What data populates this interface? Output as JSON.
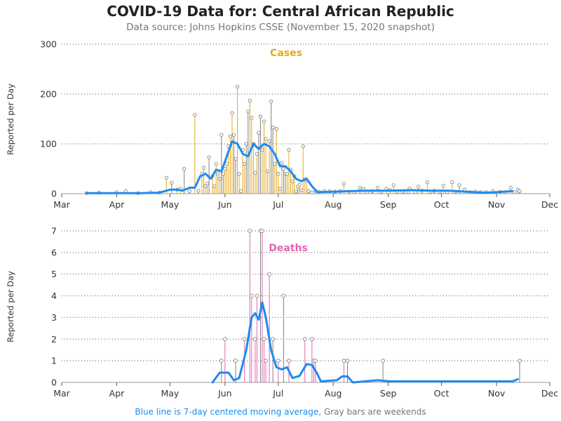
{
  "title": "COVID-19 Data for: Central African Republic",
  "subtitle": "Data source: Johns Hopkins CSSE (November 15, 2020 snapshot)",
  "footnote": {
    "blue": "Blue line is 7-day centered moving average,",
    "gray": "Gray bars are weekends"
  },
  "colors": {
    "cases": "#e6a817",
    "deaths": "#e066b3",
    "weekend": "#808080",
    "avg": "#1f8bef",
    "grid": "#555555"
  },
  "chart_data": [
    {
      "type": "bar",
      "title": "Cases",
      "ylabel": "Reported per Day",
      "ylim": [
        0,
        300
      ],
      "yticks": [
        0,
        100,
        200,
        300
      ],
      "xticks": [
        "Mar",
        "Apr",
        "May",
        "Jun",
        "Jul",
        "Aug",
        "Sep",
        "Oct",
        "Nov",
        "Dec"
      ],
      "xlim": [
        "2020-03-01",
        "2020-12-01"
      ],
      "grid": true,
      "spikes": [
        {
          "x": "2020-03-15",
          "y": 1
        },
        {
          "x": "2020-03-22",
          "y": 2
        },
        {
          "x": "2020-04-01",
          "y": 3
        },
        {
          "x": "2020-04-06",
          "y": 5
        },
        {
          "x": "2020-04-13",
          "y": 1
        },
        {
          "x": "2020-04-20",
          "y": 3
        },
        {
          "x": "2020-04-25",
          "y": 2
        },
        {
          "x": "2020-04-29",
          "y": 32
        },
        {
          "x": "2020-05-02",
          "y": 22
        },
        {
          "x": "2020-05-05",
          "y": 8
        },
        {
          "x": "2020-05-07",
          "y": 10
        },
        {
          "x": "2020-05-09",
          "y": 50
        },
        {
          "x": "2020-05-12",
          "y": 5
        },
        {
          "x": "2020-05-15",
          "y": 158
        },
        {
          "x": "2020-05-17",
          "y": 6
        },
        {
          "x": "2020-05-19",
          "y": 40
        },
        {
          "x": "2020-05-20",
          "y": 52
        },
        {
          "x": "2020-05-21",
          "y": 15
        },
        {
          "x": "2020-05-22",
          "y": 20
        },
        {
          "x": "2020-05-23",
          "y": 73
        },
        {
          "x": "2020-05-25",
          "y": 35
        },
        {
          "x": "2020-05-26",
          "y": 15
        },
        {
          "x": "2020-05-27",
          "y": 60
        },
        {
          "x": "2020-05-28",
          "y": 40
        },
        {
          "x": "2020-05-29",
          "y": 30
        },
        {
          "x": "2020-05-30",
          "y": 118
        },
        {
          "x": "2020-05-31",
          "y": 40
        },
        {
          "x": "2020-06-01",
          "y": 50
        },
        {
          "x": "2020-06-02",
          "y": 60
        },
        {
          "x": "2020-06-03",
          "y": 95
        },
        {
          "x": "2020-06-04",
          "y": 115
        },
        {
          "x": "2020-06-05",
          "y": 162
        },
        {
          "x": "2020-06-06",
          "y": 118
        },
        {
          "x": "2020-06-07",
          "y": 70
        },
        {
          "x": "2020-06-08",
          "y": 215
        },
        {
          "x": "2020-06-09",
          "y": 40
        },
        {
          "x": "2020-06-10",
          "y": 5
        },
        {
          "x": "2020-06-11",
          "y": 88
        },
        {
          "x": "2020-06-12",
          "y": 60
        },
        {
          "x": "2020-06-13",
          "y": 100
        },
        {
          "x": "2020-06-14",
          "y": 165
        },
        {
          "x": "2020-06-15",
          "y": 187
        },
        {
          "x": "2020-06-16",
          "y": 152
        },
        {
          "x": "2020-06-17",
          "y": 100
        },
        {
          "x": "2020-06-18",
          "y": 42
        },
        {
          "x": "2020-06-19",
          "y": 80
        },
        {
          "x": "2020-06-20",
          "y": 122
        },
        {
          "x": "2020-06-21",
          "y": 155
        },
        {
          "x": "2020-06-22",
          "y": 88
        },
        {
          "x": "2020-06-23",
          "y": 145
        },
        {
          "x": "2020-06-24",
          "y": 110
        },
        {
          "x": "2020-06-25",
          "y": 45
        },
        {
          "x": "2020-06-26",
          "y": 105
        },
        {
          "x": "2020-06-27",
          "y": 185
        },
        {
          "x": "2020-06-28",
          "y": 133
        },
        {
          "x": "2020-06-29",
          "y": 60
        },
        {
          "x": "2020-06-30",
          "y": 130
        },
        {
          "x": "2020-07-01",
          "y": 40
        },
        {
          "x": "2020-07-02",
          "y": 10
        },
        {
          "x": "2020-07-03",
          "y": 62
        },
        {
          "x": "2020-07-04",
          "y": 50
        },
        {
          "x": "2020-07-05",
          "y": 40
        },
        {
          "x": "2020-07-06",
          "y": 40
        },
        {
          "x": "2020-07-07",
          "y": 88
        },
        {
          "x": "2020-07-08",
          "y": 48
        },
        {
          "x": "2020-07-09",
          "y": 25
        },
        {
          "x": "2020-07-10",
          "y": 35
        },
        {
          "x": "2020-07-11",
          "y": 4
        },
        {
          "x": "2020-07-12",
          "y": 14
        },
        {
          "x": "2020-07-13",
          "y": 18
        },
        {
          "x": "2020-07-14",
          "y": 7
        },
        {
          "x": "2020-07-15",
          "y": 95
        },
        {
          "x": "2020-07-16",
          "y": 29
        },
        {
          "x": "2020-07-17",
          "y": 27
        },
        {
          "x": "2020-07-18",
          "y": 5
        },
        {
          "x": "2020-07-20",
          "y": 2
        },
        {
          "x": "2020-07-22",
          "y": 6
        },
        {
          "x": "2020-07-24",
          "y": 4
        },
        {
          "x": "2020-07-27",
          "y": 5
        },
        {
          "x": "2020-07-30",
          "y": 5
        },
        {
          "x": "2020-08-02",
          "y": 4
        },
        {
          "x": "2020-08-05",
          "y": 5
        },
        {
          "x": "2020-08-07",
          "y": 20
        },
        {
          "x": "2020-08-10",
          "y": 4
        },
        {
          "x": "2020-08-13",
          "y": 3
        },
        {
          "x": "2020-08-16",
          "y": 12
        },
        {
          "x": "2020-08-18",
          "y": 10
        },
        {
          "x": "2020-08-20",
          "y": 3
        },
        {
          "x": "2020-08-23",
          "y": 5
        },
        {
          "x": "2020-08-26",
          "y": 12
        },
        {
          "x": "2020-08-28",
          "y": 4
        },
        {
          "x": "2020-08-31",
          "y": 10
        },
        {
          "x": "2020-09-02",
          "y": 7
        },
        {
          "x": "2020-09-04",
          "y": 17
        },
        {
          "x": "2020-09-06",
          "y": 4
        },
        {
          "x": "2020-09-09",
          "y": 4
        },
        {
          "x": "2020-09-11",
          "y": 3
        },
        {
          "x": "2020-09-13",
          "y": 10
        },
        {
          "x": "2020-09-16",
          "y": 3
        },
        {
          "x": "2020-09-18",
          "y": 14
        },
        {
          "x": "2020-09-20",
          "y": 6
        },
        {
          "x": "2020-09-23",
          "y": 23
        },
        {
          "x": "2020-09-25",
          "y": 4
        },
        {
          "x": "2020-09-27",
          "y": 6
        },
        {
          "x": "2020-09-30",
          "y": 4
        },
        {
          "x": "2020-10-02",
          "y": 16
        },
        {
          "x": "2020-10-04",
          "y": 3
        },
        {
          "x": "2020-10-07",
          "y": 23
        },
        {
          "x": "2020-10-09",
          "y": 4
        },
        {
          "x": "2020-10-11",
          "y": 17
        },
        {
          "x": "2020-10-14",
          "y": 8
        },
        {
          "x": "2020-10-17",
          "y": 3
        },
        {
          "x": "2020-10-20",
          "y": 4
        },
        {
          "x": "2020-10-23",
          "y": 3
        },
        {
          "x": "2020-10-26",
          "y": 3
        },
        {
          "x": "2020-10-30",
          "y": 5
        },
        {
          "x": "2020-11-03",
          "y": 4
        },
        {
          "x": "2020-11-06",
          "y": 3
        },
        {
          "x": "2020-11-09",
          "y": 12
        },
        {
          "x": "2020-11-11",
          "y": 3
        },
        {
          "x": "2020-11-13",
          "y": 8
        },
        {
          "x": "2020-11-14",
          "y": 5
        }
      ],
      "moving_average": [
        {
          "x": "2020-03-15",
          "y": 1
        },
        {
          "x": "2020-04-01",
          "y": 1
        },
        {
          "x": "2020-04-15",
          "y": 1
        },
        {
          "x": "2020-04-25",
          "y": 2
        },
        {
          "x": "2020-05-01",
          "y": 8
        },
        {
          "x": "2020-05-05",
          "y": 8
        },
        {
          "x": "2020-05-08",
          "y": 6
        },
        {
          "x": "2020-05-12",
          "y": 12
        },
        {
          "x": "2020-05-15",
          "y": 12
        },
        {
          "x": "2020-05-18",
          "y": 35
        },
        {
          "x": "2020-05-21",
          "y": 40
        },
        {
          "x": "2020-05-24",
          "y": 30
        },
        {
          "x": "2020-05-27",
          "y": 48
        },
        {
          "x": "2020-05-30",
          "y": 45
        },
        {
          "x": "2020-06-02",
          "y": 75
        },
        {
          "x": "2020-06-05",
          "y": 105
        },
        {
          "x": "2020-06-08",
          "y": 100
        },
        {
          "x": "2020-06-11",
          "y": 80
        },
        {
          "x": "2020-06-14",
          "y": 75
        },
        {
          "x": "2020-06-17",
          "y": 100
        },
        {
          "x": "2020-06-20",
          "y": 90
        },
        {
          "x": "2020-06-23",
          "y": 100
        },
        {
          "x": "2020-06-26",
          "y": 95
        },
        {
          "x": "2020-06-29",
          "y": 80
        },
        {
          "x": "2020-07-02",
          "y": 55
        },
        {
          "x": "2020-07-05",
          "y": 55
        },
        {
          "x": "2020-07-08",
          "y": 45
        },
        {
          "x": "2020-07-11",
          "y": 30
        },
        {
          "x": "2020-07-14",
          "y": 25
        },
        {
          "x": "2020-07-17",
          "y": 30
        },
        {
          "x": "2020-07-20",
          "y": 15
        },
        {
          "x": "2020-07-23",
          "y": 3
        },
        {
          "x": "2020-08-01",
          "y": 4
        },
        {
          "x": "2020-08-10",
          "y": 5
        },
        {
          "x": "2020-08-20",
          "y": 6
        },
        {
          "x": "2020-09-01",
          "y": 6
        },
        {
          "x": "2020-09-15",
          "y": 7
        },
        {
          "x": "2020-09-25",
          "y": 6
        },
        {
          "x": "2020-10-05",
          "y": 6
        },
        {
          "x": "2020-10-15",
          "y": 4
        },
        {
          "x": "2020-10-25",
          "y": 2
        },
        {
          "x": "2020-11-01",
          "y": 3
        },
        {
          "x": "2020-11-10",
          "y": 5
        }
      ]
    },
    {
      "type": "bar",
      "title": "Deaths",
      "ylabel": "Reported per Day",
      "ylim": [
        0,
        7
      ],
      "yticks": [
        0,
        1,
        2,
        3,
        4,
        5,
        6,
        7
      ],
      "xticks": [
        "Mar",
        "Apr",
        "May",
        "Jun",
        "Jul",
        "Aug",
        "Sep",
        "Oct",
        "Nov",
        "Dec"
      ],
      "xlim": [
        "2020-03-01",
        "2020-12-01"
      ],
      "grid": true,
      "spikes": [
        {
          "x": "2020-05-30",
          "y": 1
        },
        {
          "x": "2020-06-01",
          "y": 2
        },
        {
          "x": "2020-06-07",
          "y": 1
        },
        {
          "x": "2020-06-12",
          "y": 2
        },
        {
          "x": "2020-06-15",
          "y": 7
        },
        {
          "x": "2020-06-16",
          "y": 4
        },
        {
          "x": "2020-06-18",
          "y": 2
        },
        {
          "x": "2020-06-19",
          "y": 4
        },
        {
          "x": "2020-06-21",
          "y": 7
        },
        {
          "x": "2020-06-22",
          "y": 7
        },
        {
          "x": "2020-06-23",
          "y": 2
        },
        {
          "x": "2020-06-24",
          "y": 1
        },
        {
          "x": "2020-06-26",
          "y": 5
        },
        {
          "x": "2020-06-28",
          "y": 2
        },
        {
          "x": "2020-07-01",
          "y": 1
        },
        {
          "x": "2020-07-04",
          "y": 4
        },
        {
          "x": "2020-07-07",
          "y": 1
        },
        {
          "x": "2020-07-16",
          "y": 2
        },
        {
          "x": "2020-07-20",
          "y": 2
        },
        {
          "x": "2020-07-21",
          "y": 1
        },
        {
          "x": "2020-07-22",
          "y": 1
        },
        {
          "x": "2020-08-07",
          "y": 1
        },
        {
          "x": "2020-08-09",
          "y": 1
        },
        {
          "x": "2020-08-29",
          "y": 1
        },
        {
          "x": "2020-11-14",
          "y": 1
        }
      ],
      "moving_average": [
        {
          "x": "2020-05-25",
          "y": 0
        },
        {
          "x": "2020-05-29",
          "y": 0.45
        },
        {
          "x": "2020-06-03",
          "y": 0.45
        },
        {
          "x": "2020-06-06",
          "y": 0.1
        },
        {
          "x": "2020-06-09",
          "y": 0.2
        },
        {
          "x": "2020-06-13",
          "y": 1.5
        },
        {
          "x": "2020-06-16",
          "y": 3.0
        },
        {
          "x": "2020-06-18",
          "y": 3.2
        },
        {
          "x": "2020-06-20",
          "y": 2.9
        },
        {
          "x": "2020-06-22",
          "y": 3.7
        },
        {
          "x": "2020-06-24",
          "y": 3.0
        },
        {
          "x": "2020-06-27",
          "y": 1.5
        },
        {
          "x": "2020-06-30",
          "y": 0.7
        },
        {
          "x": "2020-07-03",
          "y": 0.6
        },
        {
          "x": "2020-07-06",
          "y": 0.7
        },
        {
          "x": "2020-07-09",
          "y": 0.2
        },
        {
          "x": "2020-07-13",
          "y": 0.3
        },
        {
          "x": "2020-07-17",
          "y": 0.85
        },
        {
          "x": "2020-07-20",
          "y": 0.8
        },
        {
          "x": "2020-07-23",
          "y": 0.4
        },
        {
          "x": "2020-07-25",
          "y": 0.05
        },
        {
          "x": "2020-08-03",
          "y": 0.1
        },
        {
          "x": "2020-08-06",
          "y": 0.28
        },
        {
          "x": "2020-08-09",
          "y": 0.28
        },
        {
          "x": "2020-08-12",
          "y": 0
        },
        {
          "x": "2020-08-26",
          "y": 0.1
        },
        {
          "x": "2020-09-02",
          "y": 0.05
        },
        {
          "x": "2020-11-10",
          "y": 0.05
        },
        {
          "x": "2020-11-13",
          "y": 0.15
        }
      ]
    }
  ]
}
